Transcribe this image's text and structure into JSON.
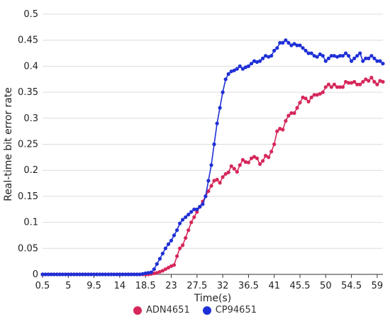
{
  "chart_data": {
    "type": "line",
    "xlabel": "Time(s)",
    "ylabel": "Real-time bit error rate",
    "xlim": [
      0.5,
      60
    ],
    "ylim": [
      0,
      0.5
    ],
    "x_ticks": [
      "0.5",
      "5",
      "9.5",
      "14",
      "18.5",
      "23",
      "27.5",
      "32",
      "36.5",
      "41",
      "45.5",
      "50",
      "54.5",
      "59"
    ],
    "y_ticks": [
      "0",
      "0.05",
      "0.1",
      "0.15",
      "0.2",
      "0.25",
      "0.3",
      "0.35",
      "0.4",
      "0.45",
      "0.5"
    ],
    "grid": "horizontal",
    "legend_position": "bottom",
    "series": [
      {
        "name": "ADN4651",
        "color": "#d6275a",
        "x": [
          0.5,
          1,
          1.5,
          2,
          2.5,
          3,
          3.5,
          4,
          4.5,
          5,
          5.5,
          6,
          6.5,
          7,
          7.5,
          8,
          8.5,
          9,
          9.5,
          10,
          10.5,
          11,
          11.5,
          12,
          12.5,
          13,
          13.5,
          14,
          14.5,
          15,
          15.5,
          16,
          16.5,
          17,
          17.5,
          18,
          18.5,
          19,
          19.5,
          20,
          20.5,
          21,
          21.5,
          22,
          22.5,
          23,
          23.5,
          24,
          24.5,
          25,
          25.5,
          26,
          26.5,
          27,
          27.5,
          28,
          28.5,
          29,
          29.5,
          30,
          30.5,
          31,
          31.5,
          32,
          32.5,
          33,
          33.5,
          34,
          34.5,
          35,
          35.5,
          36,
          36.5,
          37,
          37.5,
          38,
          38.5,
          39,
          39.5,
          40,
          40.5,
          41,
          41.5,
          42,
          42.5,
          43,
          43.5,
          44,
          44.5,
          45,
          45.5,
          46,
          46.5,
          47,
          47.5,
          48,
          48.5,
          49,
          49.5,
          50,
          50.5,
          51,
          51.5,
          52,
          52.5,
          53,
          53.5,
          54,
          54.5,
          55,
          55.5,
          56,
          56.5,
          57,
          57.5,
          58,
          58.5,
          59,
          59.5,
          60
        ],
        "y": [
          0,
          0,
          0,
          0,
          0,
          0,
          0,
          0,
          0,
          0,
          0,
          0,
          0,
          0,
          0,
          0,
          0,
          0,
          0,
          0,
          0,
          0,
          0,
          0,
          0,
          0,
          0,
          0,
          0,
          0,
          0,
          0,
          0,
          0,
          0,
          0,
          0,
          0,
          0.001,
          0.002,
          0.003,
          0.005,
          0.007,
          0.01,
          0.013,
          0.016,
          0.018,
          0.035,
          0.05,
          0.056,
          0.07,
          0.085,
          0.1,
          0.11,
          0.12,
          0.13,
          0.14,
          0.15,
          0.16,
          0.17,
          0.18,
          0.182,
          0.176,
          0.187,
          0.193,
          0.196,
          0.208,
          0.203,
          0.197,
          0.21,
          0.22,
          0.216,
          0.215,
          0.223,
          0.226,
          0.223,
          0.212,
          0.218,
          0.228,
          0.225,
          0.236,
          0.25,
          0.275,
          0.28,
          0.278,
          0.295,
          0.305,
          0.31,
          0.31,
          0.32,
          0.33,
          0.34,
          0.338,
          0.332,
          0.34,
          0.345,
          0.345,
          0.347,
          0.35,
          0.36,
          0.365,
          0.36,
          0.365,
          0.36,
          0.36,
          0.36,
          0.37,
          0.368,
          0.368,
          0.37,
          0.365,
          0.365,
          0.37,
          0.375,
          0.372,
          0.378,
          0.37,
          0.365,
          0.372,
          0.37
        ]
      },
      {
        "name": "CP94651",
        "color": "#1f2fd6",
        "x": [
          0.5,
          1,
          1.5,
          2,
          2.5,
          3,
          3.5,
          4,
          4.5,
          5,
          5.5,
          6,
          6.5,
          7,
          7.5,
          8,
          8.5,
          9,
          9.5,
          10,
          10.5,
          11,
          11.5,
          12,
          12.5,
          13,
          13.5,
          14,
          14.5,
          15,
          15.5,
          16,
          16.5,
          17,
          17.5,
          18,
          18.5,
          19,
          19.5,
          20,
          20.5,
          21,
          21.5,
          22,
          22.5,
          23,
          23.5,
          24,
          24.5,
          25,
          25.5,
          26,
          26.5,
          27,
          27.5,
          28,
          28.5,
          29,
          29.5,
          30,
          30.5,
          31,
          31.5,
          32,
          32.5,
          33,
          33.5,
          34,
          34.5,
          35,
          35.5,
          36,
          36.5,
          37,
          37.5,
          38,
          38.5,
          39,
          39.5,
          40,
          40.5,
          41,
          41.5,
          42,
          42.5,
          43,
          43.5,
          44,
          44.5,
          45,
          45.5,
          46,
          46.5,
          47,
          47.5,
          48,
          48.5,
          49,
          49.5,
          50,
          50.5,
          51,
          51.5,
          52,
          52.5,
          53,
          53.5,
          54,
          54.5,
          55,
          55.5,
          56,
          56.5,
          57,
          57.5,
          58,
          58.5,
          59,
          59.5,
          60
        ],
        "y": [
          0,
          0,
          0,
          0,
          0,
          0,
          0,
          0,
          0,
          0,
          0,
          0,
          0,
          0,
          0,
          0,
          0,
          0,
          0,
          0,
          0,
          0,
          0,
          0,
          0,
          0,
          0,
          0,
          0,
          0,
          0,
          0,
          0,
          0,
          0,
          0.001,
          0.002,
          0.003,
          0.004,
          0.01,
          0.02,
          0.03,
          0.04,
          0.05,
          0.058,
          0.065,
          0.075,
          0.085,
          0.098,
          0.105,
          0.11,
          0.115,
          0.12,
          0.125,
          0.125,
          0.13,
          0.135,
          0.15,
          0.18,
          0.21,
          0.25,
          0.29,
          0.32,
          0.35,
          0.375,
          0.385,
          0.39,
          0.392,
          0.395,
          0.4,
          0.395,
          0.398,
          0.4,
          0.405,
          0.41,
          0.408,
          0.41,
          0.415,
          0.42,
          0.418,
          0.42,
          0.43,
          0.435,
          0.445,
          0.445,
          0.45,
          0.445,
          0.44,
          0.443,
          0.44,
          0.44,
          0.435,
          0.43,
          0.425,
          0.425,
          0.42,
          0.418,
          0.423,
          0.42,
          0.41,
          0.415,
          0.42,
          0.42,
          0.418,
          0.42,
          0.42,
          0.425,
          0.42,
          0.41,
          0.415,
          0.42,
          0.425,
          0.41,
          0.415,
          0.415,
          0.42,
          0.415,
          0.41,
          0.41,
          0.405
        ]
      }
    ]
  }
}
